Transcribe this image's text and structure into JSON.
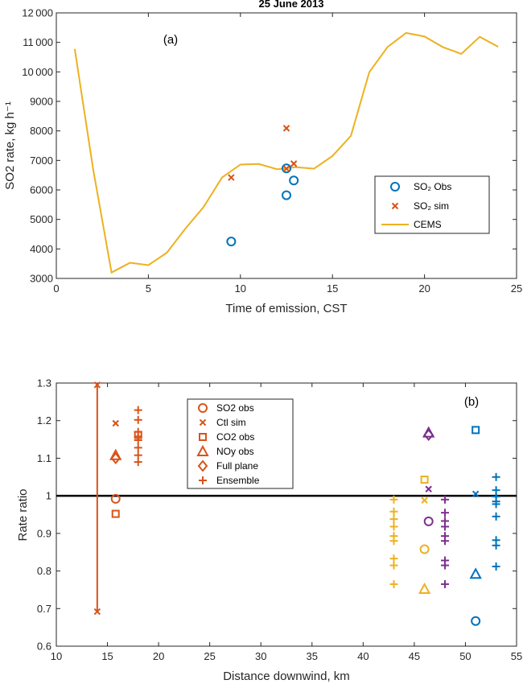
{
  "chart_data": [
    {
      "type": "line",
      "title": "25 June 2013",
      "panel_label": "(a)",
      "xlabel": "Time of emission, CST",
      "ylabel": "SO2 rate, kg h⁻¹",
      "xlim": [
        0,
        25
      ],
      "ylim": [
        3000,
        12000
      ],
      "xticks": [
        "0",
        "5",
        "10",
        "15",
        "20",
        "25"
      ],
      "yticks": [
        "3000",
        "4000",
        "5000",
        "6000",
        "7000",
        "8000",
        "9000",
        "10 000",
        "11 000",
        "12 000"
      ],
      "xtick_values": [
        0,
        5,
        10,
        15,
        20,
        25
      ],
      "ytick_values": [
        3000,
        4000,
        5000,
        6000,
        7000,
        8000,
        9000,
        10000,
        11000,
        12000
      ],
      "grid": false,
      "legend_position": "center-right",
      "colors": {
        "obs": "#0072BD",
        "sim": "#D95319",
        "cems": "#EDB120"
      },
      "legend": [
        {
          "series": "obs",
          "label": "SO₂ Obs"
        },
        {
          "series": "sim",
          "label": "SO₂ sim"
        },
        {
          "series": "cems",
          "label": "CEMS"
        }
      ],
      "series": [
        {
          "id": "cems",
          "marker": "line",
          "x": [
            1,
            2,
            3,
            4,
            5,
            6,
            7,
            8,
            9,
            10,
            11,
            12,
            13,
            14,
            15,
            16,
            17,
            18,
            19,
            20,
            21,
            22,
            23,
            24
          ],
          "y": [
            10780,
            6700,
            3200,
            3530,
            3450,
            3870,
            4680,
            5420,
            6420,
            6860,
            6880,
            6700,
            6770,
            6720,
            7150,
            7830,
            9990,
            10850,
            11320,
            11200,
            10840,
            10610,
            11190,
            10850
          ]
        },
        {
          "id": "obs",
          "marker": "circle",
          "x": [
            9.5,
            12.5,
            12.5,
            12.9
          ],
          "y": [
            4250,
            5820,
            6730,
            6320
          ]
        },
        {
          "id": "sim",
          "marker": "x",
          "x": [
            9.5,
            12.5,
            12.5,
            12.9
          ],
          "y": [
            6420,
            8090,
            6720,
            6890
          ]
        }
      ]
    },
    {
      "type": "scatter",
      "panel_label": "(b)",
      "xlabel": "Distance downwind, km",
      "ylabel": "Rate ratio",
      "xlim": [
        10,
        55
      ],
      "ylim": [
        0.6,
        1.3
      ],
      "xticks": [
        "10",
        "15",
        "20",
        "25",
        "30",
        "35",
        "40",
        "45",
        "50",
        "55"
      ],
      "yticks": [
        "0.6",
        "0.7",
        "0.8",
        "0.9",
        "1",
        "1.1",
        "1.2",
        "1.3"
      ],
      "xtick_values": [
        10,
        15,
        20,
        25,
        30,
        35,
        40,
        45,
        50,
        55
      ],
      "ytick_values": [
        0.6,
        0.7,
        0.8,
        0.9,
        1.0,
        1.1,
        1.2,
        1.3
      ],
      "reference_line": 1.0,
      "grid": false,
      "legend_position": "top-center",
      "colors": {
        "orange": "#D95319",
        "yellow": "#EDB120",
        "purple": "#7E2F8E",
        "blue": "#0072BD",
        "black": "#000000"
      },
      "legend": [
        {
          "marker": "circle",
          "label": "SO2 obs"
        },
        {
          "marker": "x",
          "label": "Ctl sim"
        },
        {
          "marker": "square",
          "label": "CO2 obs"
        },
        {
          "marker": "triangle",
          "label": "NOy obs"
        },
        {
          "marker": "diamond",
          "label": "Full plane"
        },
        {
          "marker": "plus",
          "label": "Ensemble"
        }
      ],
      "errorbars": [
        {
          "x": 14,
          "low": 0.69,
          "high": 1.295,
          "color": "orange"
        }
      ],
      "points": [
        {
          "x": 14,
          "y": 1.295,
          "marker": "x",
          "color": "orange"
        },
        {
          "x": 14,
          "y": 0.692,
          "marker": "x",
          "color": "orange"
        },
        {
          "x": 15.8,
          "y": 0.992,
          "marker": "circle",
          "color": "orange"
        },
        {
          "x": 15.8,
          "y": 1.193,
          "marker": "x",
          "color": "orange"
        },
        {
          "x": 15.8,
          "y": 0.952,
          "marker": "square",
          "color": "orange"
        },
        {
          "x": 15.8,
          "y": 1.108,
          "marker": "triangle",
          "color": "orange"
        },
        {
          "x": 15.8,
          "y": 1.1,
          "marker": "diamond",
          "color": "orange"
        },
        {
          "x": 18,
          "y": 1.228,
          "marker": "plus",
          "color": "orange"
        },
        {
          "x": 18,
          "y": 1.202,
          "marker": "plus",
          "color": "orange"
        },
        {
          "x": 18,
          "y": 1.17,
          "marker": "plus",
          "color": "orange"
        },
        {
          "x": 18,
          "y": 1.158,
          "marker": "plus",
          "color": "orange"
        },
        {
          "x": 18,
          "y": 1.148,
          "marker": "plus",
          "color": "orange"
        },
        {
          "x": 18,
          "y": 1.128,
          "marker": "plus",
          "color": "orange"
        },
        {
          "x": 18,
          "y": 1.108,
          "marker": "plus",
          "color": "orange"
        },
        {
          "x": 18,
          "y": 1.09,
          "marker": "plus",
          "color": "orange"
        },
        {
          "x": 18,
          "y": 1.162,
          "marker": "square",
          "color": "orange"
        },
        {
          "x": 43,
          "y": 0.99,
          "marker": "plus",
          "color": "yellow"
        },
        {
          "x": 43,
          "y": 0.958,
          "marker": "plus",
          "color": "yellow"
        },
        {
          "x": 43,
          "y": 0.938,
          "marker": "plus",
          "color": "yellow"
        },
        {
          "x": 43,
          "y": 0.918,
          "marker": "plus",
          "color": "yellow"
        },
        {
          "x": 43,
          "y": 0.893,
          "marker": "plus",
          "color": "yellow"
        },
        {
          "x": 43,
          "y": 0.88,
          "marker": "plus",
          "color": "yellow"
        },
        {
          "x": 43,
          "y": 0.833,
          "marker": "plus",
          "color": "yellow"
        },
        {
          "x": 43,
          "y": 0.815,
          "marker": "plus",
          "color": "yellow"
        },
        {
          "x": 43,
          "y": 0.765,
          "marker": "plus",
          "color": "yellow"
        },
        {
          "x": 46,
          "y": 1.043,
          "marker": "square",
          "color": "yellow"
        },
        {
          "x": 46,
          "y": 0.988,
          "marker": "x",
          "color": "yellow"
        },
        {
          "x": 46,
          "y": 0.858,
          "marker": "circle",
          "color": "yellow"
        },
        {
          "x": 46,
          "y": 0.752,
          "marker": "triangle",
          "color": "yellow"
        },
        {
          "x": 46.4,
          "y": 1.168,
          "marker": "triangle",
          "color": "purple"
        },
        {
          "x": 46.4,
          "y": 1.162,
          "marker": "diamond",
          "color": "purple"
        },
        {
          "x": 46.4,
          "y": 1.018,
          "marker": "x",
          "color": "purple"
        },
        {
          "x": 46.4,
          "y": 0.932,
          "marker": "circle",
          "color": "purple"
        },
        {
          "x": 48,
          "y": 0.99,
          "marker": "plus",
          "color": "purple"
        },
        {
          "x": 48,
          "y": 0.955,
          "marker": "plus",
          "color": "purple"
        },
        {
          "x": 48,
          "y": 0.933,
          "marker": "plus",
          "color": "purple"
        },
        {
          "x": 48,
          "y": 0.918,
          "marker": "plus",
          "color": "purple"
        },
        {
          "x": 48,
          "y": 0.893,
          "marker": "plus",
          "color": "purple"
        },
        {
          "x": 48,
          "y": 0.88,
          "marker": "plus",
          "color": "purple"
        },
        {
          "x": 48,
          "y": 0.828,
          "marker": "plus",
          "color": "purple"
        },
        {
          "x": 48,
          "y": 0.815,
          "marker": "plus",
          "color": "purple"
        },
        {
          "x": 48,
          "y": 0.765,
          "marker": "plus",
          "color": "purple"
        },
        {
          "x": 51,
          "y": 1.175,
          "marker": "square",
          "color": "blue"
        },
        {
          "x": 51,
          "y": 1.005,
          "marker": "x",
          "color": "blue"
        },
        {
          "x": 51,
          "y": 0.792,
          "marker": "triangle",
          "color": "blue"
        },
        {
          "x": 51,
          "y": 0.667,
          "marker": "circle",
          "color": "blue"
        },
        {
          "x": 53,
          "y": 1.05,
          "marker": "plus",
          "color": "blue"
        },
        {
          "x": 53,
          "y": 1.015,
          "marker": "plus",
          "color": "blue"
        },
        {
          "x": 53,
          "y": 0.998,
          "marker": "plus",
          "color": "blue"
        },
        {
          "x": 53,
          "y": 0.985,
          "marker": "plus",
          "color": "blue"
        },
        {
          "x": 53,
          "y": 0.978,
          "marker": "plus",
          "color": "blue"
        },
        {
          "x": 53,
          "y": 0.945,
          "marker": "plus",
          "color": "blue"
        },
        {
          "x": 53,
          "y": 0.882,
          "marker": "plus",
          "color": "blue"
        },
        {
          "x": 53,
          "y": 0.868,
          "marker": "plus",
          "color": "blue"
        },
        {
          "x": 53,
          "y": 0.812,
          "marker": "plus",
          "color": "blue"
        }
      ]
    }
  ]
}
